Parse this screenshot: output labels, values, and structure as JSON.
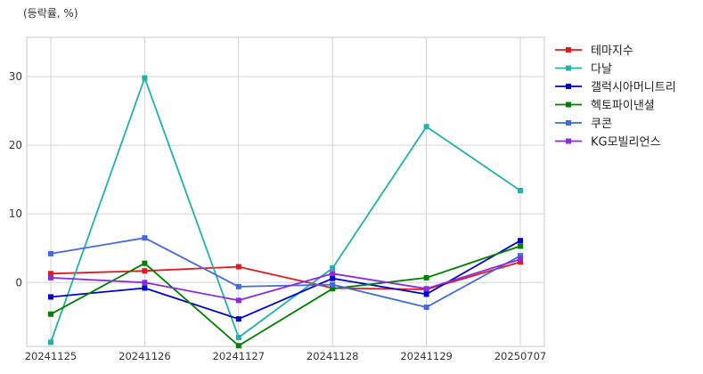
{
  "chart_data": {
    "type": "line",
    "unit_label": "(등락률, %)",
    "categories": [
      "20241125",
      "20241126",
      "20241127",
      "20241128",
      "20241129",
      "20250707"
    ],
    "ylim": [
      -9.3,
      35.7
    ],
    "yticks": [
      0,
      10,
      20,
      30
    ],
    "grid": true,
    "legend_position": "right",
    "series": [
      {
        "name": "테마지수",
        "color": "#e31a1c",
        "values": [
          1.3,
          1.7,
          2.3,
          -0.8,
          -1.0,
          3.0
        ]
      },
      {
        "name": "다날",
        "color": "#20b2aa",
        "values": [
          -8.7,
          29.8,
          -8.0,
          2.1,
          22.7,
          13.4
        ]
      },
      {
        "name": "갤럭시아머니트리",
        "color": "#0000cd",
        "values": [
          -2.1,
          -0.8,
          -5.3,
          0.6,
          -1.7,
          6.1
        ]
      },
      {
        "name": "헥토파이낸셜",
        "color": "#008000",
        "values": [
          -4.6,
          2.8,
          -9.2,
          -0.9,
          0.7,
          5.3
        ]
      },
      {
        "name": "쿠콘",
        "color": "#4169e1",
        "values": [
          4.2,
          6.5,
          -0.6,
          -0.3,
          -3.6,
          3.9
        ]
      },
      {
        "name": "KG모빌리언스",
        "color": "#8a2be2",
        "values": [
          0.7,
          0.0,
          -2.6,
          1.3,
          -0.9,
          3.4
        ]
      }
    ]
  }
}
